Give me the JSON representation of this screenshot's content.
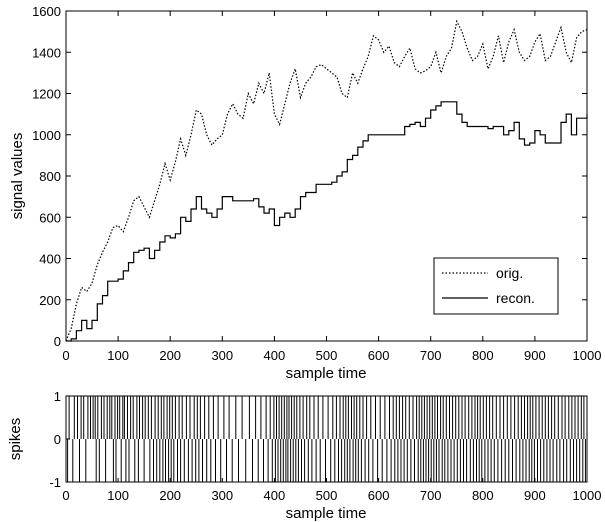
{
  "chart_data": [
    {
      "type": "line",
      "xlabel": "sample time",
      "ylabel": "signal values",
      "xlim": [
        0,
        1000
      ],
      "ylim": [
        0,
        1600
      ],
      "xticks": [
        "0",
        "100",
        "200",
        "300",
        "400",
        "500",
        "600",
        "700",
        "800",
        "900",
        "1000"
      ],
      "yticks": [
        "0",
        "200",
        "400",
        "600",
        "800",
        "1000",
        "1200",
        "1400",
        "1600"
      ],
      "legend_position": "bottom-right",
      "series": [
        {
          "name": "orig.",
          "style": "dotted",
          "color": "#000000",
          "x": [
            0,
            10,
            20,
            30,
            40,
            50,
            60,
            70,
            80,
            90,
            100,
            110,
            120,
            130,
            140,
            150,
            160,
            170,
            180,
            190,
            200,
            210,
            220,
            230,
            240,
            250,
            260,
            270,
            280,
            290,
            300,
            310,
            320,
            330,
            340,
            350,
            360,
            370,
            380,
            390,
            400,
            410,
            420,
            430,
            440,
            450,
            460,
            470,
            480,
            490,
            500,
            510,
            520,
            530,
            540,
            550,
            560,
            570,
            580,
            590,
            600,
            610,
            620,
            630,
            640,
            650,
            660,
            670,
            680,
            690,
            700,
            710,
            720,
            730,
            740,
            750,
            760,
            770,
            780,
            790,
            800,
            810,
            820,
            830,
            840,
            850,
            860,
            870,
            880,
            890,
            900,
            910,
            920,
            930,
            940,
            950,
            960,
            970,
            980,
            990,
            1000
          ],
          "y": [
            0,
            60,
            180,
            260,
            240,
            280,
            370,
            430,
            480,
            550,
            560,
            530,
            600,
            680,
            700,
            650,
            600,
            680,
            760,
            860,
            780,
            870,
            980,
            900,
            1000,
            1120,
            1100,
            1000,
            950,
            980,
            1000,
            1100,
            1150,
            1100,
            1080,
            1200,
            1150,
            1250,
            1200,
            1300,
            1100,
            1050,
            1150,
            1250,
            1320,
            1180,
            1250,
            1280,
            1330,
            1340,
            1320,
            1300,
            1280,
            1200,
            1180,
            1300,
            1250,
            1320,
            1380,
            1480,
            1460,
            1400,
            1430,
            1350,
            1330,
            1380,
            1420,
            1320,
            1300,
            1310,
            1330,
            1400,
            1300,
            1380,
            1420,
            1550,
            1500,
            1420,
            1360,
            1380,
            1440,
            1320,
            1380,
            1480,
            1350,
            1450,
            1510,
            1400,
            1360,
            1380,
            1450,
            1490,
            1360,
            1380,
            1450,
            1520,
            1400,
            1350,
            1470,
            1500,
            1510
          ]
        },
        {
          "name": "recon.",
          "style": "solid",
          "color": "#000000",
          "x": [
            0,
            10,
            20,
            30,
            40,
            50,
            60,
            70,
            80,
            90,
            100,
            110,
            120,
            130,
            140,
            150,
            160,
            170,
            180,
            190,
            200,
            210,
            220,
            230,
            240,
            250,
            260,
            270,
            280,
            290,
            300,
            310,
            320,
            330,
            340,
            350,
            360,
            370,
            380,
            390,
            400,
            410,
            420,
            430,
            440,
            450,
            460,
            470,
            480,
            490,
            500,
            510,
            520,
            530,
            540,
            550,
            560,
            570,
            580,
            590,
            600,
            610,
            620,
            630,
            640,
            650,
            660,
            670,
            680,
            690,
            700,
            710,
            720,
            730,
            740,
            750,
            760,
            770,
            780,
            790,
            800,
            810,
            820,
            830,
            840,
            850,
            860,
            870,
            880,
            890,
            900,
            910,
            920,
            930,
            940,
            950,
            960,
            970,
            980,
            990,
            1000
          ],
          "y": [
            0,
            10,
            50,
            100,
            60,
            100,
            180,
            220,
            290,
            290,
            300,
            340,
            380,
            430,
            440,
            450,
            400,
            440,
            480,
            510,
            500,
            520,
            600,
            580,
            640,
            700,
            640,
            620,
            600,
            640,
            700,
            700,
            680,
            680,
            680,
            680,
            690,
            650,
            620,
            640,
            560,
            600,
            620,
            600,
            640,
            700,
            720,
            720,
            760,
            760,
            760,
            770,
            800,
            820,
            880,
            900,
            940,
            970,
            1000,
            1000,
            1000,
            1000,
            1000,
            1000,
            1000,
            1040,
            1050,
            1060,
            1040,
            1080,
            1120,
            1140,
            1160,
            1160,
            1160,
            1100,
            1060,
            1040,
            1040,
            1040,
            1040,
            1030,
            1040,
            1040,
            1000,
            1020,
            1060,
            980,
            950,
            960,
            1020,
            1000,
            960,
            960,
            960,
            1060,
            1100,
            1000,
            1080,
            1080,
            1100
          ]
        }
      ]
    },
    {
      "type": "bar",
      "xlabel": "sample time",
      "ylabel": "spikes",
      "xlim": [
        0,
        1000
      ],
      "ylim": [
        -1,
        1
      ],
      "xticks": [
        "0",
        "100",
        "200",
        "300",
        "400",
        "500",
        "600",
        "700",
        "800",
        "900",
        "1000"
      ],
      "yticks": [
        "-1",
        "0",
        "1"
      ],
      "spikes_up": [
        6,
        16,
        22,
        29,
        34,
        42,
        47,
        52,
        56,
        61,
        68,
        73,
        79,
        84,
        88,
        94,
        99,
        103,
        109,
        112,
        118,
        124,
        129,
        136,
        141,
        147,
        152,
        158,
        164,
        171,
        177,
        183,
        188,
        194,
        199,
        204,
        210,
        217,
        223,
        231,
        238,
        246,
        252,
        258,
        266,
        274,
        283,
        292,
        303,
        313,
        326,
        338,
        352,
        364,
        374,
        384,
        392,
        399,
        404,
        409,
        414,
        419,
        424,
        428,
        433,
        438,
        443,
        449,
        455,
        462,
        468,
        476,
        484,
        493,
        503,
        512,
        519,
        526,
        532,
        537,
        542,
        548,
        553,
        558,
        564,
        570,
        577,
        585,
        594,
        603,
        612,
        621,
        628,
        634,
        640,
        646,
        652,
        659,
        666,
        673,
        678,
        683,
        688,
        693,
        698,
        703,
        708,
        713,
        719,
        724,
        730,
        736,
        742,
        748,
        754,
        760,
        766,
        773,
        779,
        785,
        790,
        795,
        801,
        807,
        813,
        819,
        826,
        833,
        840,
        847,
        854,
        861,
        868,
        874,
        880,
        886,
        891,
        896,
        902,
        908,
        914,
        920,
        926,
        932,
        938,
        945,
        952,
        958,
        965,
        971,
        977,
        983,
        989,
        994
      ],
      "spikes_down": [
        3,
        13,
        26,
        38,
        58,
        64,
        76,
        91,
        96,
        106,
        115,
        121,
        132,
        139,
        150,
        161,
        168,
        174,
        180,
        186,
        191,
        197,
        202,
        207,
        214,
        220,
        227,
        235,
        242,
        249,
        255,
        262,
        270,
        278,
        287,
        297,
        308,
        319,
        331,
        345,
        358,
        369,
        379,
        388,
        396,
        402,
        407,
        412,
        417,
        422,
        426,
        431,
        436,
        441,
        446,
        452,
        458,
        465,
        472,
        480,
        488,
        498,
        508,
        516,
        523,
        529,
        535,
        540,
        545,
        551,
        556,
        561,
        567,
        574,
        581,
        589,
        598,
        607,
        616,
        624,
        631,
        637,
        643,
        649,
        655,
        662,
        669,
        676,
        681,
        686,
        691,
        696,
        701,
        706,
        711,
        716,
        722,
        727,
        733,
        739,
        745,
        751,
        757,
        763,
        769,
        776,
        782,
        788,
        793,
        798,
        804,
        810,
        816,
        822,
        829,
        836,
        843,
        850,
        857,
        864,
        871,
        877,
        883,
        889,
        894,
        899,
        905,
        911,
        917,
        923,
        929,
        935,
        942,
        948,
        955,
        961,
        968,
        974,
        980,
        986,
        992,
        997
      ]
    }
  ]
}
